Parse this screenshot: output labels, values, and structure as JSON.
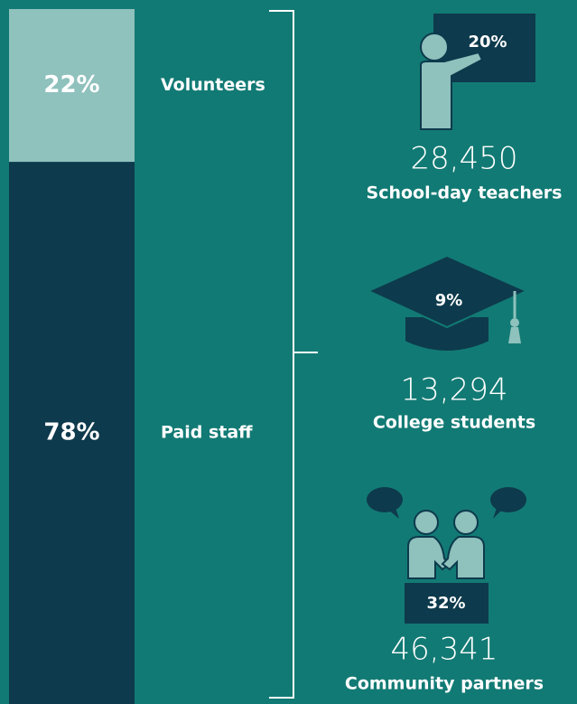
{
  "chart_data": {
    "type": "stacked-bar",
    "series": [
      {
        "name": "Volunteers",
        "color": "#8fc1bd",
        "values": [
          22
        ],
        "value_labels": [
          "22%"
        ]
      },
      {
        "name": "Paid staff",
        "color": "#0d3a4c",
        "values": [
          78
        ],
        "value_labels": [
          "78%"
        ]
      }
    ]
  },
  "breakdown": [
    {
      "share": "20%",
      "count": "28,450",
      "label": "School-day teachers"
    },
    {
      "share": "9%",
      "count": "13,294",
      "label": "College students"
    },
    {
      "share": "32%",
      "count": "46,341",
      "label": "Community partners"
    }
  ]
}
